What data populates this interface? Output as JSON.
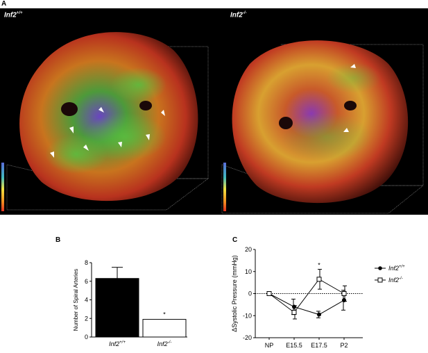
{
  "panels": {
    "a": {
      "letter": "A",
      "left_label": "Inf2",
      "left_sup": "+/+",
      "right_label": "Inf2",
      "right_sup": "-/-"
    },
    "b": {
      "letter": "B"
    },
    "c": {
      "letter": "C"
    }
  },
  "chart_data": [
    {
      "type": "bar",
      "categories": [
        "Inf2+/+",
        "Inf2-/-"
      ],
      "category_labels": [
        {
          "base": "Inf2",
          "sup": "+/+"
        },
        {
          "base": "Inf2",
          "sup": "-/-"
        }
      ],
      "values": [
        6.3,
        1.9
      ],
      "error_up": [
        1.2,
        0
      ],
      "fills": [
        "#000000",
        "#ffffff"
      ],
      "ylabel": "Number of Spiral Arteries",
      "ylim": [
        0,
        8
      ],
      "yticks": [
        0,
        2,
        4,
        6,
        8
      ],
      "annotations": [
        {
          "category": "Inf2-/-",
          "text": "*"
        }
      ],
      "grid": false
    },
    {
      "type": "line",
      "categories": [
        "NP",
        "E15.5",
        "E17.5",
        "P2"
      ],
      "series": [
        {
          "name": "Inf2+/+",
          "marker": "filled-circle",
          "values": [
            0,
            -6,
            -9.5,
            -3
          ],
          "error": [
            0,
            3.5,
            1.5,
            4.5
          ]
        },
        {
          "name": "Inf2-/-",
          "marker": "open-square",
          "values": [
            0,
            -8.5,
            6.5,
            0
          ],
          "error": [
            0,
            3,
            4.5,
            3.5
          ]
        }
      ],
      "legend_labels": [
        {
          "base": "Inf2",
          "sup": "+/+"
        },
        {
          "base": "Inf2",
          "sup": "-/-"
        }
      ],
      "ylabel": "ΔSystolic Pressure (mmHg)",
      "ylim": [
        -20,
        20
      ],
      "yticks": [
        -20,
        -10,
        0,
        10,
        20
      ],
      "reference_line": 0,
      "annotations": [
        {
          "category": "E17.5",
          "text": "*"
        }
      ],
      "legend_position": "right",
      "grid": false
    }
  ]
}
